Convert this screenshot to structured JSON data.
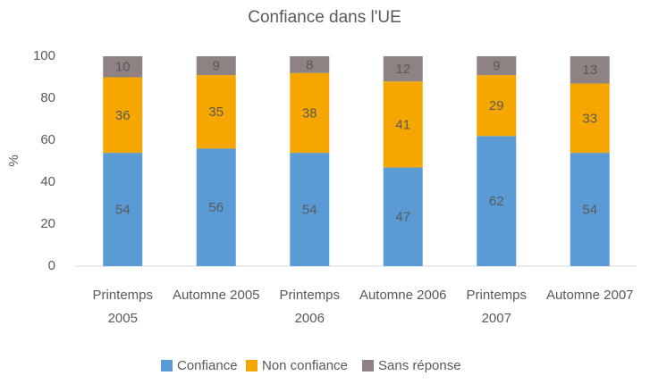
{
  "chart_data": {
    "type": "stacked_bar",
    "title": "Confiance dans l'UE",
    "y_label": "%",
    "categories": [
      "Printemps 2005",
      "Automne 2005",
      "Printemps 2006",
      "Automne 2006",
      "Printemps 2007",
      "Automne 2007"
    ],
    "series": [
      {
        "name": "Confiance",
        "color": "#5b9bd5",
        "values": [
          54,
          56,
          54,
          47,
          62,
          54
        ]
      },
      {
        "name": "Non confiance",
        "color": "#f5a700",
        "values": [
          36,
          35,
          38,
          41,
          29,
          33
        ]
      },
      {
        "name": "Sans réponse",
        "color": "#8f8282",
        "values": [
          10,
          9,
          8,
          12,
          9,
          13
        ]
      }
    ],
    "ylim": [
      0,
      100
    ],
    "yticks": [
      0,
      20,
      40,
      60,
      80,
      100
    ],
    "grid": false,
    "legend": "bottom"
  }
}
